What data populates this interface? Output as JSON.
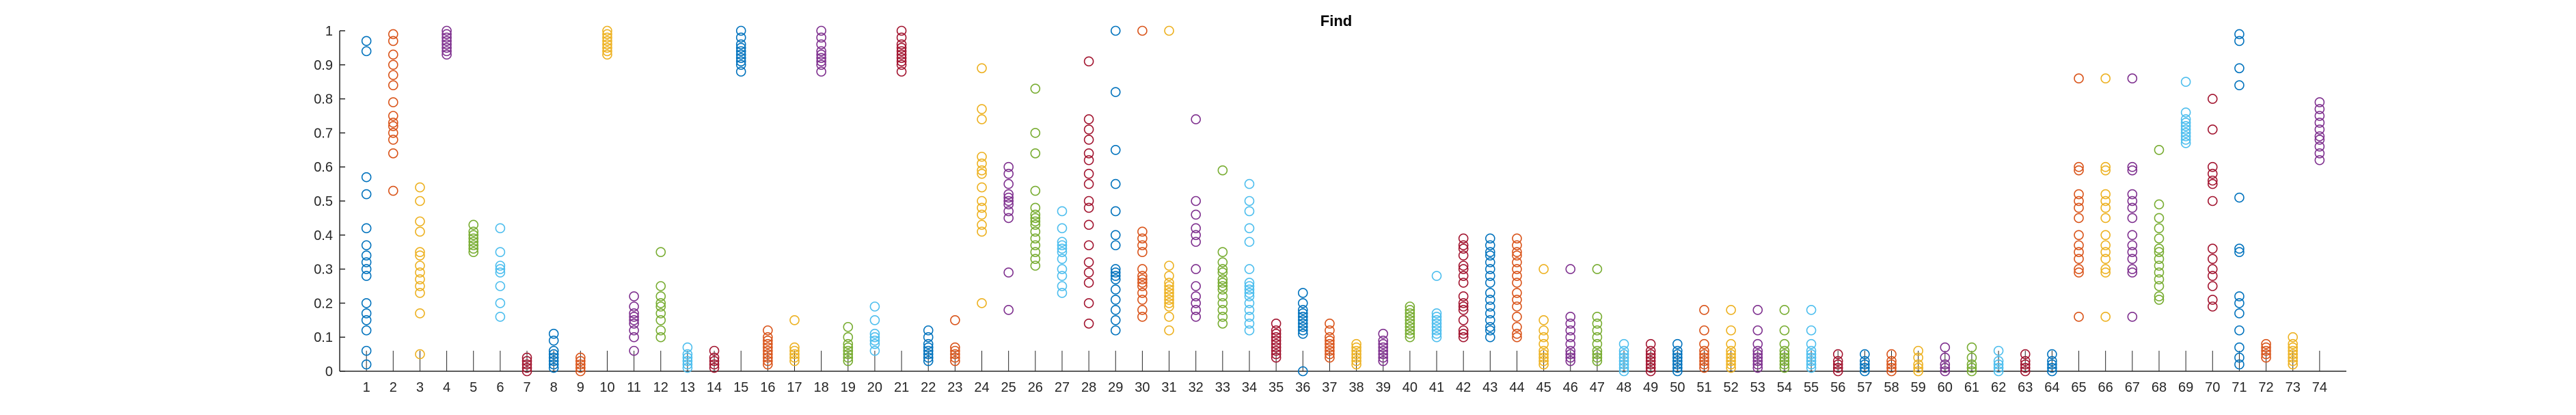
{
  "chart_data": {
    "type": "scatter",
    "title": "Find",
    "xlabel": "",
    "ylabel": "",
    "xlim": [
      0,
      75
    ],
    "ylim": [
      0,
      1
    ],
    "grid": false,
    "legend": "none",
    "marker": "open-circle",
    "x_ticks": [
      1,
      2,
      3,
      4,
      5,
      6,
      7,
      8,
      9,
      10,
      11,
      12,
      13,
      14,
      15,
      16,
      17,
      18,
      19,
      20,
      21,
      22,
      23,
      24,
      25,
      26,
      27,
      28,
      29,
      30,
      31,
      32,
      33,
      34,
      35,
      36,
      37,
      38,
      39,
      40,
      41,
      42,
      43,
      44,
      45,
      46,
      47,
      48,
      49,
      50,
      51,
      52,
      53,
      54,
      55,
      56,
      57,
      58,
      59,
      60,
      61,
      62,
      63,
      64,
      65,
      66,
      67,
      68,
      69,
      70,
      71,
      72,
      73,
      74
    ],
    "x_tick_labels": [
      "1",
      "2",
      "3",
      "4",
      "5",
      "6",
      "7",
      "8",
      "9",
      "10",
      "11",
      "12",
      "13",
      "14",
      "15",
      "16",
      "17",
      "18",
      "19",
      "20",
      "21",
      "22",
      "23",
      "24",
      "25",
      "26",
      "27",
      "28",
      "29",
      "30",
      "31",
      "32",
      "33",
      "34",
      "35",
      "36",
      "37",
      "38",
      "39",
      "40",
      "41",
      "42",
      "43",
      "44",
      "45",
      "46",
      "47",
      "48",
      "49",
      "50",
      "51",
      "52",
      "53",
      "54",
      "55",
      "56",
      "57",
      "58",
      "59",
      "60",
      "61",
      "62",
      "63",
      "64",
      "65",
      "66",
      "67",
      "68",
      "69",
      "70",
      "71",
      "72",
      "73",
      "74"
    ],
    "y_ticks": [
      0,
      0.1,
      0.2,
      0.3,
      0.4,
      0.5,
      0.6,
      0.7,
      0.8,
      0.9,
      1
    ],
    "y_tick_labels": [
      "0",
      "0.1",
      "0.2",
      "0.3",
      "0.4",
      "0.5",
      "0.6",
      "0.7",
      "0.8",
      "0.9",
      "1"
    ],
    "palette": [
      "#0072BD",
      "#D95319",
      "#EDB120",
      "#7E2F8E",
      "#77AC30",
      "#4DBEEE",
      "#A2142F"
    ],
    "series": [
      {
        "x": 1,
        "values": [
          0.97,
          0.94,
          0.57,
          0.52,
          0.42,
          0.37,
          0.34,
          0.32,
          0.3,
          0.28,
          0.2,
          0.17,
          0.15,
          0.12,
          0.06,
          0.02
        ]
      },
      {
        "x": 2,
        "values": [
          0.99,
          0.97,
          0.93,
          0.9,
          0.87,
          0.84,
          0.79,
          0.75,
          0.73,
          0.72,
          0.7,
          0.68,
          0.64,
          0.53
        ]
      },
      {
        "x": 3,
        "values": [
          0.54,
          0.5,
          0.44,
          0.41,
          0.35,
          0.34,
          0.31,
          0.29,
          0.27,
          0.25,
          0.23,
          0.17,
          0.05
        ]
      },
      {
        "x": 4,
        "values": [
          1.0,
          0.99,
          0.98,
          0.97,
          0.96,
          0.95,
          0.94,
          0.93
        ]
      },
      {
        "x": 5,
        "values": [
          0.43,
          0.41,
          0.4,
          0.39,
          0.38,
          0.37,
          0.36,
          0.35
        ]
      },
      {
        "x": 6,
        "values": [
          0.42,
          0.35,
          0.31,
          0.3,
          0.29,
          0.25,
          0.2,
          0.16
        ]
      },
      {
        "x": 7,
        "values": [
          0.04,
          0.03,
          0.02,
          0.01,
          0.0
        ]
      },
      {
        "x": 8,
        "values": [
          0.11,
          0.09,
          0.06,
          0.05,
          0.04,
          0.03,
          0.02,
          0.01
        ]
      },
      {
        "x": 9,
        "values": [
          0.04,
          0.03,
          0.02,
          0.01,
          0.0
        ]
      },
      {
        "x": 10,
        "values": [
          1.0,
          0.99,
          0.98,
          0.97,
          0.96,
          0.95,
          0.94,
          0.93
        ]
      },
      {
        "x": 11,
        "values": [
          0.22,
          0.19,
          0.17,
          0.16,
          0.15,
          0.14,
          0.12,
          0.1,
          0.06
        ]
      },
      {
        "x": 12,
        "values": [
          0.35,
          0.25,
          0.22,
          0.2,
          0.19,
          0.17,
          0.15,
          0.12,
          0.1
        ]
      },
      {
        "x": 13,
        "values": [
          0.07,
          0.05,
          0.04,
          0.03,
          0.02,
          0.01
        ]
      },
      {
        "x": 14,
        "values": [
          0.06,
          0.04,
          0.03,
          0.02,
          0.01
        ]
      },
      {
        "x": 15,
        "values": [
          1.0,
          0.98,
          0.96,
          0.95,
          0.94,
          0.93,
          0.92,
          0.91,
          0.9,
          0.88
        ]
      },
      {
        "x": 16,
        "values": [
          0.12,
          0.1,
          0.09,
          0.08,
          0.07,
          0.06,
          0.05,
          0.04,
          0.03,
          0.02
        ]
      },
      {
        "x": 17,
        "values": [
          0.15,
          0.07,
          0.06,
          0.05,
          0.04,
          0.03
        ]
      },
      {
        "x": 18,
        "values": [
          1.0,
          0.98,
          0.96,
          0.94,
          0.93,
          0.92,
          0.91,
          0.9,
          0.88
        ]
      },
      {
        "x": 19,
        "values": [
          0.13,
          0.1,
          0.08,
          0.07,
          0.06,
          0.05,
          0.04,
          0.03
        ]
      },
      {
        "x": 20,
        "values": [
          0.19,
          0.15,
          0.11,
          0.1,
          0.09,
          0.08,
          0.06
        ]
      },
      {
        "x": 21,
        "values": [
          1.0,
          0.98,
          0.96,
          0.95,
          0.94,
          0.93,
          0.92,
          0.91,
          0.9,
          0.88
        ]
      },
      {
        "x": 22,
        "values": [
          0.12,
          0.1,
          0.08,
          0.07,
          0.06,
          0.05,
          0.04,
          0.03
        ]
      },
      {
        "x": 23,
        "values": [
          0.15,
          0.07,
          0.06,
          0.05,
          0.04,
          0.03
        ]
      },
      {
        "x": 24,
        "values": [
          0.89,
          0.77,
          0.74,
          0.63,
          0.61,
          0.59,
          0.58,
          0.54,
          0.5,
          0.48,
          0.46,
          0.43,
          0.41,
          0.2
        ]
      },
      {
        "x": 25,
        "values": [
          0.6,
          0.58,
          0.55,
          0.52,
          0.51,
          0.5,
          0.49,
          0.47,
          0.45,
          0.29,
          0.18
        ]
      },
      {
        "x": 26,
        "values": [
          0.83,
          0.7,
          0.64,
          0.53,
          0.48,
          0.46,
          0.45,
          0.44,
          0.43,
          0.41,
          0.39,
          0.37,
          0.35,
          0.33,
          0.31
        ]
      },
      {
        "x": 27,
        "values": [
          0.47,
          0.42,
          0.38,
          0.37,
          0.36,
          0.35,
          0.33,
          0.3,
          0.28,
          0.25,
          0.23
        ]
      },
      {
        "x": 28,
        "values": [
          0.91,
          0.74,
          0.71,
          0.68,
          0.64,
          0.62,
          0.58,
          0.55,
          0.5,
          0.48,
          0.43,
          0.37,
          0.32,
          0.29,
          0.26,
          0.2,
          0.14
        ]
      },
      {
        "x": 29,
        "values": [
          1.0,
          0.82,
          0.65,
          0.55,
          0.47,
          0.4,
          0.37,
          0.3,
          0.29,
          0.28,
          0.27,
          0.24,
          0.21,
          0.18,
          0.15,
          0.12
        ]
      },
      {
        "x": 30,
        "values": [
          1.0,
          0.41,
          0.39,
          0.37,
          0.35,
          0.3,
          0.28,
          0.27,
          0.26,
          0.25,
          0.23,
          0.21,
          0.18,
          0.16
        ]
      },
      {
        "x": 31,
        "values": [
          1.0,
          0.31,
          0.28,
          0.26,
          0.25,
          0.24,
          0.23,
          0.22,
          0.21,
          0.2,
          0.19,
          0.16,
          0.12
        ]
      },
      {
        "x": 32,
        "values": [
          0.74,
          0.5,
          0.46,
          0.42,
          0.4,
          0.38,
          0.3,
          0.25,
          0.22,
          0.2,
          0.18,
          0.16
        ]
      },
      {
        "x": 33,
        "values": [
          0.59,
          0.35,
          0.32,
          0.3,
          0.29,
          0.27,
          0.26,
          0.25,
          0.24,
          0.22,
          0.2,
          0.18,
          0.16,
          0.14
        ]
      },
      {
        "x": 34,
        "values": [
          0.55,
          0.5,
          0.47,
          0.42,
          0.38,
          0.3,
          0.26,
          0.25,
          0.24,
          0.23,
          0.22,
          0.2,
          0.18,
          0.16,
          0.14,
          0.12
        ]
      },
      {
        "x": 35,
        "values": [
          0.14,
          0.12,
          0.11,
          0.1,
          0.09,
          0.08,
          0.07,
          0.06,
          0.05,
          0.04
        ]
      },
      {
        "x": 36,
        "values": [
          0.23,
          0.2,
          0.18,
          0.17,
          0.16,
          0.15,
          0.14,
          0.13,
          0.12,
          0.11,
          0.0
        ]
      },
      {
        "x": 37,
        "values": [
          0.14,
          0.12,
          0.1,
          0.09,
          0.08,
          0.07,
          0.06,
          0.05,
          0.04
        ]
      },
      {
        "x": 38,
        "values": [
          0.08,
          0.07,
          0.06,
          0.05,
          0.04,
          0.03,
          0.02
        ]
      },
      {
        "x": 39,
        "values": [
          0.11,
          0.09,
          0.08,
          0.07,
          0.06,
          0.05,
          0.04,
          0.03
        ]
      },
      {
        "x": 40,
        "values": [
          0.19,
          0.18,
          0.17,
          0.16,
          0.15,
          0.14,
          0.13,
          0.12,
          0.11,
          0.1
        ]
      },
      {
        "x": 41,
        "values": [
          0.28,
          0.17,
          0.16,
          0.15,
          0.14,
          0.13,
          0.12,
          0.11,
          0.1
        ]
      },
      {
        "x": 42,
        "values": [
          0.39,
          0.37,
          0.36,
          0.34,
          0.31,
          0.3,
          0.28,
          0.26,
          0.22,
          0.2,
          0.19,
          0.18,
          0.15,
          0.12,
          0.11,
          0.1
        ]
      },
      {
        "x": 43,
        "values": [
          0.39,
          0.37,
          0.35,
          0.34,
          0.32,
          0.3,
          0.28,
          0.26,
          0.23,
          0.21,
          0.19,
          0.17,
          0.15,
          0.13,
          0.12,
          0.1
        ]
      },
      {
        "x": 44,
        "values": [
          0.39,
          0.37,
          0.35,
          0.34,
          0.32,
          0.3,
          0.28,
          0.26,
          0.23,
          0.21,
          0.19,
          0.16,
          0.13,
          0.11,
          0.1
        ]
      },
      {
        "x": 45,
        "values": [
          0.3,
          0.15,
          0.12,
          0.1,
          0.08,
          0.06,
          0.05,
          0.04,
          0.03,
          0.02
        ]
      },
      {
        "x": 46,
        "values": [
          0.3,
          0.16,
          0.14,
          0.12,
          0.1,
          0.08,
          0.06,
          0.05,
          0.04,
          0.03
        ]
      },
      {
        "x": 47,
        "values": [
          0.3,
          0.16,
          0.14,
          0.12,
          0.1,
          0.08,
          0.06,
          0.05,
          0.04,
          0.03
        ]
      },
      {
        "x": 48,
        "values": [
          0.08,
          0.06,
          0.05,
          0.04,
          0.03,
          0.02,
          0.01,
          0.0
        ]
      },
      {
        "x": 49,
        "values": [
          0.08,
          0.06,
          0.05,
          0.04,
          0.03,
          0.02,
          0.01,
          0.0
        ]
      },
      {
        "x": 50,
        "values": [
          0.08,
          0.06,
          0.05,
          0.04,
          0.03,
          0.02,
          0.01,
          0.0
        ]
      },
      {
        "x": 51,
        "values": [
          0.18,
          0.12,
          0.08,
          0.06,
          0.05,
          0.04,
          0.03,
          0.02,
          0.01
        ]
      },
      {
        "x": 52,
        "values": [
          0.18,
          0.12,
          0.08,
          0.06,
          0.05,
          0.04,
          0.03,
          0.02,
          0.01
        ]
      },
      {
        "x": 53,
        "values": [
          0.18,
          0.12,
          0.08,
          0.06,
          0.05,
          0.04,
          0.03,
          0.02,
          0.01
        ]
      },
      {
        "x": 54,
        "values": [
          0.18,
          0.12,
          0.08,
          0.06,
          0.05,
          0.04,
          0.03,
          0.02,
          0.01
        ]
      },
      {
        "x": 55,
        "values": [
          0.18,
          0.12,
          0.08,
          0.06,
          0.05,
          0.04,
          0.03,
          0.02,
          0.01
        ]
      },
      {
        "x": 56,
        "values": [
          0.05,
          0.03,
          0.02,
          0.01,
          0.0
        ]
      },
      {
        "x": 57,
        "values": [
          0.05,
          0.03,
          0.02,
          0.01,
          0.0
        ]
      },
      {
        "x": 58,
        "values": [
          0.05,
          0.03,
          0.02,
          0.01,
          0.0
        ]
      },
      {
        "x": 59,
        "values": [
          0.06,
          0.04,
          0.02,
          0.01,
          0.0
        ]
      },
      {
        "x": 60,
        "values": [
          0.07,
          0.04,
          0.02,
          0.01,
          0.0
        ]
      },
      {
        "x": 61,
        "values": [
          0.07,
          0.04,
          0.02,
          0.01,
          0.0
        ]
      },
      {
        "x": 62,
        "values": [
          0.06,
          0.03,
          0.02,
          0.01,
          0.0
        ]
      },
      {
        "x": 63,
        "values": [
          0.05,
          0.03,
          0.02,
          0.01,
          0.0
        ]
      },
      {
        "x": 64,
        "values": [
          0.05,
          0.03,
          0.02,
          0.01,
          0.0
        ]
      },
      {
        "x": 65,
        "values": [
          0.86,
          0.6,
          0.59,
          0.52,
          0.5,
          0.48,
          0.45,
          0.4,
          0.37,
          0.35,
          0.33,
          0.3,
          0.29,
          0.16
        ]
      },
      {
        "x": 66,
        "values": [
          0.86,
          0.6,
          0.59,
          0.52,
          0.5,
          0.48,
          0.45,
          0.4,
          0.37,
          0.35,
          0.33,
          0.3,
          0.29,
          0.16
        ]
      },
      {
        "x": 67,
        "values": [
          0.86,
          0.6,
          0.59,
          0.52,
          0.5,
          0.48,
          0.45,
          0.4,
          0.37,
          0.35,
          0.33,
          0.3,
          0.29,
          0.16
        ]
      },
      {
        "x": 68,
        "values": [
          0.65,
          0.49,
          0.45,
          0.42,
          0.39,
          0.36,
          0.35,
          0.33,
          0.31,
          0.29,
          0.27,
          0.25,
          0.22,
          0.21
        ]
      },
      {
        "x": 69,
        "values": [
          0.85,
          0.76,
          0.74,
          0.73,
          0.72,
          0.71,
          0.7,
          0.69,
          0.68,
          0.67
        ]
      },
      {
        "x": 70,
        "values": [
          0.8,
          0.71,
          0.6,
          0.58,
          0.56,
          0.55,
          0.5,
          0.36,
          0.33,
          0.3,
          0.28,
          0.25,
          0.21,
          0.19
        ]
      },
      {
        "x": 71,
        "values": [
          0.99,
          0.97,
          0.89,
          0.84,
          0.51,
          0.36,
          0.35,
          0.22,
          0.2,
          0.17,
          0.12,
          0.07,
          0.04,
          0.02
        ]
      },
      {
        "x": 72,
        "values": [
          0.08,
          0.07,
          0.06,
          0.05,
          0.04
        ]
      },
      {
        "x": 73,
        "values": [
          0.1,
          0.08,
          0.07,
          0.06,
          0.05,
          0.04,
          0.03,
          0.02
        ]
      },
      {
        "x": 74,
        "values": [
          0.79,
          0.77,
          0.75,
          0.73,
          0.71,
          0.69,
          0.68,
          0.66,
          0.64,
          0.62
        ]
      }
    ]
  }
}
